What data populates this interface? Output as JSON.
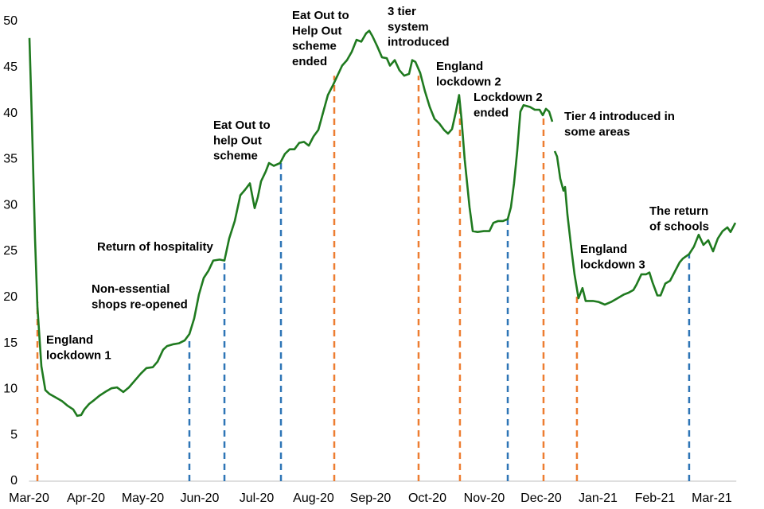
{
  "chart_data": {
    "type": "line",
    "xlim": [
      0,
      12.43
    ],
    "ylim": [
      0,
      50
    ],
    "grid": false,
    "xticks": [
      {
        "value": 0,
        "label": "Mar-20"
      },
      {
        "value": 1,
        "label": "Apr-20"
      },
      {
        "value": 2,
        "label": "May-20"
      },
      {
        "value": 3,
        "label": "Jun-20"
      },
      {
        "value": 4,
        "label": "Jul-20"
      },
      {
        "value": 5,
        "label": "Aug-20"
      },
      {
        "value": 6,
        "label": "Sep-20"
      },
      {
        "value": 7,
        "label": "Oct-20"
      },
      {
        "value": 8,
        "label": "Nov-20"
      },
      {
        "value": 9,
        "label": "Dec-20"
      },
      {
        "value": 10,
        "label": "Jan-21"
      },
      {
        "value": 11,
        "label": "Feb-21"
      },
      {
        "value": 12,
        "label": "Mar-21"
      }
    ],
    "yticks": [
      0,
      5,
      10,
      15,
      20,
      25,
      30,
      35,
      40,
      45,
      50
    ],
    "x": [
      0.007,
      0.049,
      0.105,
      0.147,
      0.217,
      0.287,
      0.357,
      0.469,
      0.58,
      0.678,
      0.776,
      0.846,
      0.916,
      0.972,
      1.056,
      1.14,
      1.238,
      1.336,
      1.448,
      1.545,
      1.657,
      1.755,
      1.867,
      1.965,
      2.063,
      2.175,
      2.259,
      2.357,
      2.427,
      2.538,
      2.636,
      2.734,
      2.818,
      2.902,
      2.986,
      3.07,
      3.154,
      3.238,
      3.35,
      3.434,
      3.517,
      3.615,
      3.713,
      3.797,
      3.881,
      3.965,
      4.021,
      4.077,
      4.161,
      4.217,
      4.301,
      4.413,
      4.497,
      4.58,
      4.664,
      4.748,
      4.832,
      4.916,
      5.0,
      5.084,
      5.168,
      5.252,
      5.336,
      5.42,
      5.503,
      5.587,
      5.671,
      5.755,
      5.839,
      5.923,
      5.979,
      6.035,
      6.119,
      6.203,
      6.287,
      6.343,
      6.427,
      6.51,
      6.594,
      6.678,
      6.734,
      6.79,
      6.874,
      6.958,
      7.042,
      7.126,
      7.21,
      7.294,
      7.364,
      7.434,
      7.503,
      7.559,
      7.601,
      7.657,
      7.741,
      7.797,
      7.881,
      7.993,
      8.091,
      8.161,
      8.245,
      8.329,
      8.413,
      8.469,
      8.524,
      8.58,
      8.636,
      8.692,
      8.748,
      8.804,
      8.888,
      8.972,
      9.028,
      9.084,
      9.14,
      9.196,
      9.217,
      9.238,
      9.28,
      9.336,
      9.392,
      9.42,
      9.462,
      9.531,
      9.587,
      9.657,
      9.727,
      9.783,
      9.909,
      10.007,
      10.119,
      10.231,
      10.343,
      10.455,
      10.538,
      10.622,
      10.678,
      10.762,
      10.846,
      10.902,
      10.958,
      11.042,
      11.098,
      11.182,
      11.266,
      11.35,
      11.434,
      11.49,
      11.601,
      11.685,
      11.769,
      11.853,
      11.937,
      12.021,
      12.105,
      12.189,
      12.273,
      12.329,
      12.413
    ],
    "series": [
      {
        "color": "#1f7a1f",
        "values": [
          48.2,
          39.4,
          26.4,
          19.0,
          12.5,
          9.9,
          9.5,
          9.1,
          8.7,
          8.2,
          7.8,
          7.1,
          7.2,
          7.8,
          8.4,
          8.8,
          9.3,
          9.7,
          10.1,
          10.2,
          9.7,
          10.2,
          11.0,
          11.7,
          12.3,
          12.4,
          13.0,
          14.3,
          14.7,
          14.9,
          15.0,
          15.3,
          16.0,
          17.7,
          20.3,
          22.1,
          22.9,
          24.0,
          24.1,
          24.0,
          26.4,
          28.3,
          31.1,
          31.7,
          32.4,
          29.7,
          30.9,
          32.6,
          33.7,
          34.6,
          34.3,
          34.6,
          35.6,
          36.1,
          36.1,
          36.8,
          36.9,
          36.5,
          37.5,
          38.2,
          40.1,
          42.0,
          43.0,
          44.1,
          45.2,
          45.8,
          46.7,
          48.0,
          47.8,
          48.7,
          49.0,
          48.4,
          47.3,
          46.1,
          46.0,
          45.2,
          45.8,
          44.7,
          44.1,
          44.3,
          45.8,
          45.6,
          44.4,
          42.4,
          40.7,
          39.4,
          38.9,
          38.2,
          37.8,
          38.3,
          40.2,
          42.0,
          39.4,
          35.0,
          29.8,
          27.2,
          27.1,
          27.2,
          27.2,
          28.1,
          28.3,
          28.3,
          28.5,
          29.8,
          32.4,
          35.9,
          40.2,
          40.9,
          40.8,
          40.7,
          40.4,
          40.4,
          39.8,
          40.5,
          40.2,
          39.1,
          null,
          35.9,
          35.3,
          32.9,
          31.6,
          32.0,
          29.0,
          25.3,
          22.5,
          19.9,
          21.0,
          19.6,
          19.6,
          19.5,
          19.2,
          19.5,
          19.9,
          20.3,
          20.5,
          20.8,
          21.4,
          22.5,
          22.5,
          22.7,
          21.6,
          20.2,
          20.2,
          21.5,
          21.8,
          22.8,
          23.8,
          24.2,
          24.7,
          25.5,
          26.8,
          25.7,
          26.2,
          25.0,
          26.4,
          27.2,
          27.6,
          27.1,
          28.1
        ]
      }
    ],
    "events": [
      {
        "label": [
          "England",
          "lockdown 1"
        ],
        "x": 0.147,
        "value": 19.5,
        "color": "#ed7d31"
      },
      {
        "label": [
          "Non-essential",
          "shops re-opened"
        ],
        "x": 2.818,
        "value": 15.3,
        "color": "#2e75b6"
      },
      {
        "label": [
          "Return of hospitality"
        ],
        "x": 3.434,
        "value": 24.2,
        "color": "#2e75b6"
      },
      {
        "label": [
          "Eat Out to",
          "help Out",
          "scheme"
        ],
        "x": 4.427,
        "value": 34.8,
        "color": "#2e75b6"
      },
      {
        "label": [
          "Eat Out to",
          "Help Out",
          "scheme",
          "ended"
        ],
        "x": 5.364,
        "value": 44.1,
        "color": "#ed7d31"
      },
      {
        "label": [
          "3 tier",
          "system",
          "introduced"
        ],
        "x": 6.846,
        "value": 44.1,
        "color": "#ed7d31"
      },
      {
        "label": [
          "England",
          "lockdown 2"
        ],
        "x": 7.573,
        "value": 40.7,
        "color": "#ed7d31"
      },
      {
        "label": [
          "Lockdown 2",
          "ended"
        ],
        "x": 8.413,
        "value": 28.5,
        "color": "#2e75b6"
      },
      {
        "label": [
          "Tier 4 introduced in",
          "some areas"
        ],
        "x": 9.042,
        "value": 39.8,
        "color": "#ed7d31"
      },
      {
        "label": [
          "England",
          "lockdown 3"
        ],
        "x": 9.629,
        "value": 20.3,
        "color": "#ed7d31"
      },
      {
        "label": [
          "The return",
          "of schools"
        ],
        "x": 11.601,
        "value": 24.7,
        "color": "#2e75b6"
      }
    ]
  }
}
